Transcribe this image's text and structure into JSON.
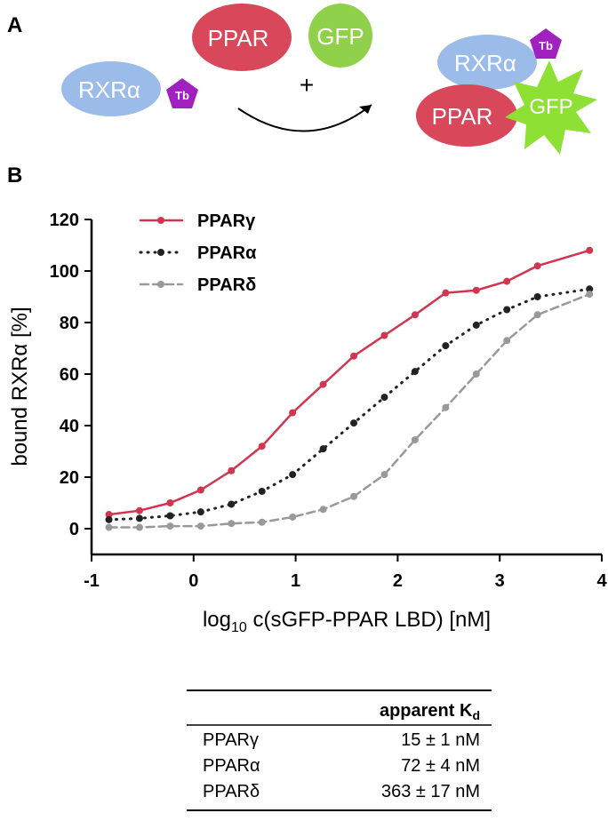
{
  "panels": {
    "a": "A",
    "b": "B"
  },
  "diagram": {
    "left_rxr": "RXRα",
    "left_tb": "Tb",
    "ppar": "PPAR",
    "gfp": "GFP",
    "plus": "+",
    "right_rxr": "RXRα",
    "right_tb": "Tb",
    "right_ppar": "PPAR",
    "right_gfp": "GFP"
  },
  "chart_data": {
    "type": "line",
    "y_label": "bound RXRα [%]",
    "x_label": {
      "main": "log",
      "sub": "10",
      "rest": " c(sGFP-PPAR LBD) [nM]"
    },
    "x": [
      -0.83,
      -0.53,
      -0.23,
      0.07,
      0.37,
      0.67,
      0.97,
      1.27,
      1.57,
      1.87,
      2.17,
      2.47,
      2.77,
      3.07,
      3.37,
      3.88
    ],
    "series": [
      {
        "name": "PPARγ",
        "color": "#d0364f",
        "dash": "solid",
        "values": [
          5.5,
          7,
          10,
          15,
          22.5,
          32,
          45,
          56,
          67,
          75,
          83,
          91.5,
          92.5,
          96,
          102,
          108
        ]
      },
      {
        "name": "PPARα",
        "color": "#222222",
        "dash": "dotted",
        "values": [
          3.5,
          4,
          5,
          6.5,
          9.5,
          14.5,
          21,
          31,
          41,
          51,
          61,
          71,
          79,
          85,
          90,
          93
        ]
      },
      {
        "name": "PPARδ",
        "color": "#999999",
        "dash": "dashed",
        "values": [
          0.5,
          0.5,
          1,
          1,
          2,
          2.5,
          4.5,
          7.5,
          12.5,
          21,
          34.5,
          47,
          60,
          73,
          83,
          91
        ]
      }
    ],
    "xlim": [
      -1,
      4
    ],
    "xticks": [
      -1,
      0,
      1,
      2,
      3,
      4
    ],
    "ylim": [
      -10,
      120
    ],
    "yticks": [
      0,
      20,
      40,
      60,
      80,
      100,
      120
    ],
    "legend": "upper-left"
  },
  "table": {
    "header": {
      "text": "apparent K",
      "subscript": "d"
    },
    "rows": [
      [
        "PPARγ",
        "15 ± 1 nM"
      ],
      [
        "PPARα",
        "72 ± 4 nM"
      ],
      [
        "PPARδ",
        "363 ± 17 nM"
      ]
    ]
  }
}
